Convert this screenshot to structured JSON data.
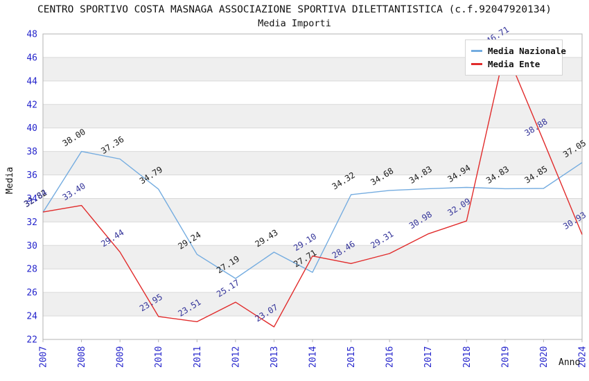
{
  "chart_data": {
    "type": "line",
    "title": "CENTRO SPORTIVO COSTA MASNAGA ASSOCIAZIONE SPORTIVA DILETTANTISTICA (c.f.92047920134)",
    "subtitle": "Media Importi",
    "xlabel": "Anno",
    "ylabel": "Media",
    "ylim": [
      22,
      48
    ],
    "ytick_step": 2,
    "grid": "horizontal-bands",
    "legend_position": "top-right",
    "x_categories": [
      "2007",
      "2008",
      "2009",
      "2010",
      "2011",
      "2012",
      "2013",
      "2014",
      "2015",
      "2016",
      "2017",
      "2018",
      "2019",
      "2020",
      "2024"
    ],
    "series": [
      {
        "name": "Media Nazionale",
        "color": "#74ACE0",
        "label_color": "#1a1a1a",
        "values": [
          32.82,
          38.0,
          37.36,
          34.79,
          29.24,
          27.19,
          29.43,
          27.71,
          34.32,
          34.68,
          34.83,
          34.94,
          34.83,
          34.85,
          37.05
        ]
      },
      {
        "name": "Media Ente",
        "color": "#E12B2B",
        "label_color": "#333399",
        "values": [
          32.84,
          33.4,
          29.44,
          23.95,
          23.51,
          25.17,
          23.07,
          29.1,
          28.46,
          29.31,
          30.98,
          32.09,
          46.71,
          38.88,
          30.93
        ]
      }
    ],
    "colors": {
      "axis_tick_label": "#2525CC",
      "band_gray": "#efefef",
      "gridline": "#d9d9d9",
      "plot_border": "#b3b3b3",
      "background": "#ffffff"
    }
  }
}
